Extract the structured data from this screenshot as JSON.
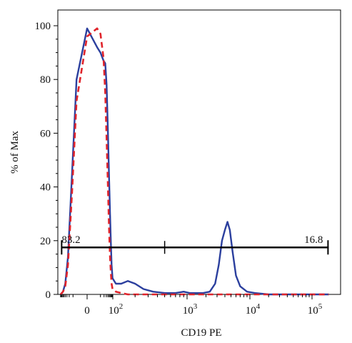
{
  "chart_data": {
    "type": "line",
    "x_scale": "biexponential",
    "xlabel": "CD19 PE",
    "ylabel": "% of Max",
    "ylim": [
      0,
      100
    ],
    "y_ticks": [
      0,
      20,
      40,
      60,
      80,
      100
    ],
    "x_ticks": [
      {
        "value": 0,
        "label": "0"
      },
      {
        "value": 100,
        "label": "10",
        "exp": "2"
      },
      {
        "value": 1000,
        "label": "10",
        "exp": "3"
      },
      {
        "value": 10000,
        "label": "10",
        "exp": "4"
      },
      {
        "value": 100000,
        "label": "10",
        "exp": "5"
      }
    ],
    "series": [
      {
        "color": "#2b3f9e",
        "style": "solid",
        "x": [
          -90,
          -60,
          -40,
          -25,
          -12,
          -5,
          0,
          5,
          10,
          18,
          25,
          32,
          40,
          50,
          60,
          70,
          80,
          95,
          110,
          130,
          160,
          200,
          260,
          350,
          500,
          700,
          900,
          1100,
          1400,
          1800,
          2300,
          2800,
          3200,
          3600,
          4000,
          4400,
          4800,
          5300,
          6000,
          7000,
          9000,
          12000,
          20000,
          50000,
          100000,
          150000
        ],
        "y": [
          0,
          1,
          4,
          14,
          45,
          80,
          99,
          92,
          90,
          87,
          86,
          78,
          62,
          44,
          30,
          19,
          11,
          6,
          4,
          4,
          5,
          4,
          2,
          1,
          0.5,
          0.5,
          1,
          0.5,
          0.5,
          0.5,
          1,
          4,
          11,
          20,
          24,
          27,
          24,
          16,
          7,
          3,
          1,
          0.5,
          0,
          0,
          0,
          0
        ]
      },
      {
        "color": "#e0242b",
        "style": "dashed",
        "x": [
          -90,
          -60,
          -40,
          -25,
          -12,
          -5,
          0,
          5,
          10,
          18,
          25,
          32,
          40,
          50,
          60,
          70,
          80,
          95,
          110,
          130,
          160,
          200,
          300,
          500,
          1000,
          2000,
          5000,
          10000,
          100000,
          150000
        ],
        "y": [
          0,
          1,
          3,
          11,
          38,
          72,
          96,
          99,
          97,
          88,
          75,
          58,
          42,
          25,
          14,
          8,
          4,
          2,
          1,
          0.5,
          0,
          0,
          0,
          0,
          0,
          0,
          0,
          0,
          0,
          0
        ]
      }
    ],
    "gate": {
      "y": 17.5,
      "x_start": -75,
      "x_split": 500,
      "x_end": 150000,
      "left_label": "83.2",
      "right_label": "16.8"
    }
  }
}
